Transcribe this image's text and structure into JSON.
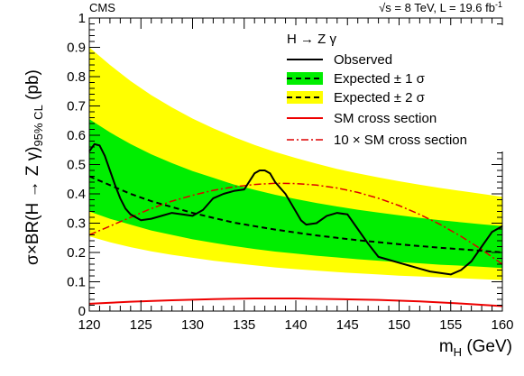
{
  "chart_data": {
    "type": "line",
    "experiment": "CMS",
    "energy_lumi": "√s = 8 TeV, L = 19.6 fb",
    "energy_lumi_sup": "-1",
    "xlabel": "m",
    "xlabel_sub": "H",
    "xlabel_unit": " (GeV)",
    "ylabel_pre": "σ×BR(H → Z γ)",
    "ylabel_sub": "95% CL",
    "ylabel_unit": "  (pb)",
    "xlim": [
      120,
      160
    ],
    "ylim": [
      0,
      1
    ],
    "x_ticks": [
      "120",
      "125",
      "130",
      "135",
      "140",
      "145",
      "150",
      "155",
      "160"
    ],
    "y_ticks": [
      "0",
      "0.1",
      "0.2",
      "0.3",
      "0.4",
      "0.5",
      "0.6",
      "0.7",
      "0.8",
      "0.9",
      "1"
    ],
    "legend_title": "H → Z γ",
    "legend_placement": "top-right",
    "colors": {
      "observed": "#000000",
      "expected": "#000000",
      "band_1sigma": "#00ee00",
      "band_2sigma": "#ffff00",
      "sm": "#ee0000",
      "sm10": "#dd0000"
    },
    "series": [
      {
        "name": "Observed",
        "style": "solid",
        "x": [
          120,
          120.5,
          121,
          121.5,
          122,
          122.5,
          123,
          123.5,
          124,
          125,
          126,
          127,
          128,
          129,
          130,
          131,
          132,
          133,
          134,
          135,
          136,
          136.5,
          137,
          137.5,
          138,
          139,
          140,
          140.5,
          141,
          142,
          143,
          144,
          145,
          146,
          147,
          148,
          149,
          150,
          151,
          152,
          153,
          154,
          155,
          156,
          157,
          158,
          159,
          160
        ],
        "y": [
          0.545,
          0.57,
          0.565,
          0.53,
          0.48,
          0.43,
          0.385,
          0.35,
          0.33,
          0.31,
          0.315,
          0.325,
          0.335,
          0.33,
          0.325,
          0.345,
          0.385,
          0.4,
          0.41,
          0.415,
          0.47,
          0.48,
          0.48,
          0.47,
          0.44,
          0.4,
          0.34,
          0.31,
          0.295,
          0.3,
          0.325,
          0.335,
          0.33,
          0.28,
          0.23,
          0.185,
          0.175,
          0.165,
          0.155,
          0.145,
          0.135,
          0.13,
          0.125,
          0.14,
          0.17,
          0.22,
          0.27,
          0.29
        ]
      },
      {
        "name": "Expected ± 1 σ",
        "style": "dashed",
        "x": [
          120,
          122,
          124,
          126,
          128,
          130,
          132,
          134,
          136,
          138,
          140,
          142,
          144,
          146,
          148,
          150,
          152,
          154,
          156,
          158,
          160
        ],
        "y": [
          0.46,
          0.43,
          0.4,
          0.375,
          0.355,
          0.335,
          0.318,
          0.302,
          0.29,
          0.278,
          0.268,
          0.258,
          0.25,
          0.242,
          0.235,
          0.228,
          0.222,
          0.216,
          0.211,
          0.206,
          0.2
        ],
        "band_1sigma_low": [
          0.34,
          0.315,
          0.295,
          0.275,
          0.26,
          0.245,
          0.233,
          0.222,
          0.212,
          0.203,
          0.196,
          0.189,
          0.183,
          0.177,
          0.172,
          0.167,
          0.163,
          0.158,
          0.155,
          0.151,
          0.147
        ],
        "band_1sigma_high": [
          0.655,
          0.61,
          0.57,
          0.535,
          0.505,
          0.478,
          0.455,
          0.432,
          0.414,
          0.397,
          0.382,
          0.369,
          0.357,
          0.346,
          0.336,
          0.327,
          0.318,
          0.31,
          0.303,
          0.296,
          0.29
        ]
      },
      {
        "name": "Expected ± 2 σ",
        "style": "dashed",
        "band_2sigma_low": [
          0.255,
          0.235,
          0.218,
          0.204,
          0.192,
          0.182,
          0.172,
          0.164,
          0.156,
          0.149,
          0.143,
          0.138,
          0.133,
          0.129,
          0.125,
          0.121,
          0.118,
          0.115,
          0.112,
          0.109,
          0.106
        ],
        "band_2sigma_high": [
          0.9,
          0.84,
          0.785,
          0.737,
          0.695,
          0.657,
          0.624,
          0.594,
          0.567,
          0.543,
          0.522,
          0.503,
          0.485,
          0.47,
          0.456,
          0.443,
          0.431,
          0.42,
          0.41,
          0.4,
          0.39
        ]
      },
      {
        "name": "SM cross section",
        "style": "solid",
        "x": [
          120,
          124,
          128,
          132,
          136,
          140,
          144,
          148,
          152,
          156,
          160
        ],
        "y": [
          0.025,
          0.032,
          0.037,
          0.041,
          0.043,
          0.043,
          0.041,
          0.038,
          0.033,
          0.026,
          0.017
        ]
      },
      {
        "name": "10 × SM cross section",
        "style": "dashdot",
        "x": [
          120,
          122,
          124,
          126,
          128,
          130,
          132,
          134,
          136,
          138,
          140,
          142,
          144,
          146,
          148,
          150,
          152,
          154,
          156,
          158,
          160
        ],
        "y": [
          0.26,
          0.29,
          0.32,
          0.35,
          0.375,
          0.395,
          0.412,
          0.424,
          0.432,
          0.436,
          0.435,
          0.43,
          0.42,
          0.405,
          0.385,
          0.36,
          0.33,
          0.295,
          0.255,
          0.21,
          0.16
        ]
      }
    ]
  }
}
